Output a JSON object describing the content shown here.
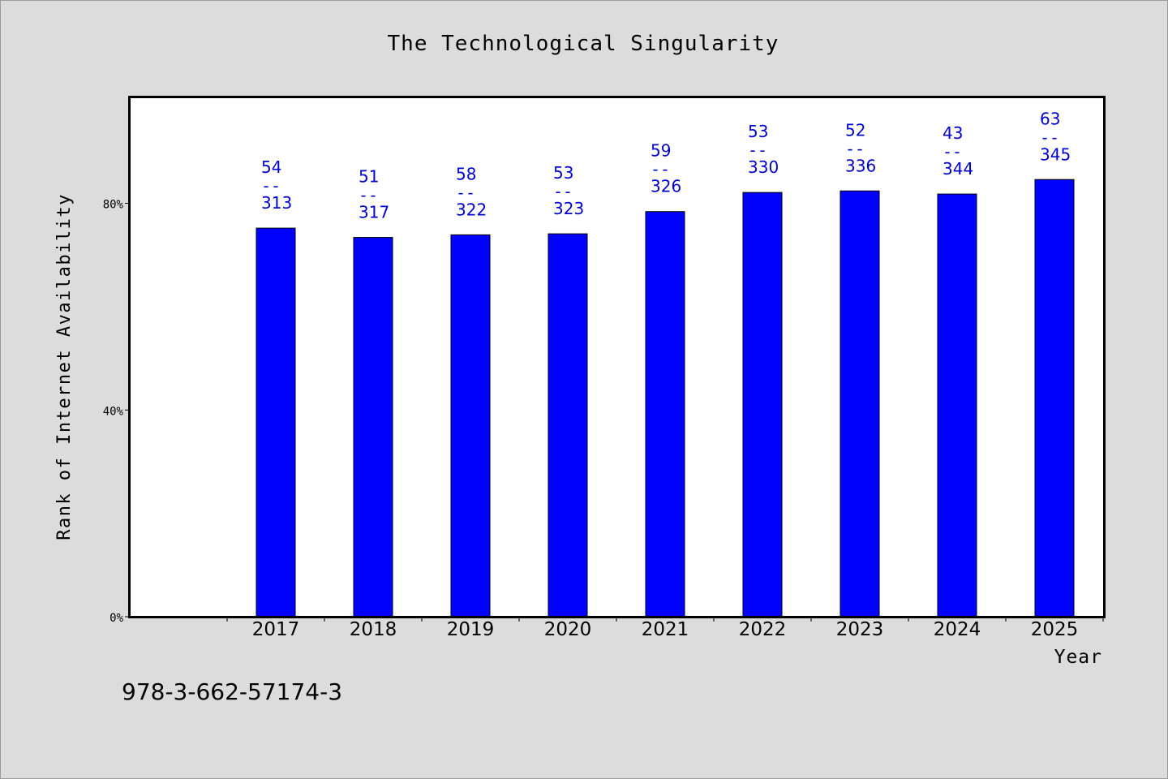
{
  "chart_data": {
    "type": "bar",
    "title": "The Technological Singularity",
    "xlabel": "Year",
    "ylabel": "Rank of Internet Availability",
    "y_tick_labels": [
      "0%",
      "40%",
      "80%"
    ],
    "y_tick_values": [
      0,
      40,
      80
    ],
    "ylim": [
      0,
      100.5
    ],
    "categories": [
      "2017",
      "2018",
      "2019",
      "2020",
      "2021",
      "2022",
      "2023",
      "2024",
      "2025"
    ],
    "values": [
      75.2,
      73.4,
      73.9,
      74.1,
      78.4,
      82.1,
      82.4,
      81.8,
      84.6
    ],
    "label_top": [
      "54",
      "51",
      "58",
      "53",
      "59",
      "53",
      "52",
      "43",
      "63"
    ],
    "label_separator": "--",
    "label_bottom": [
      "313",
      "317",
      "322",
      "323",
      "326",
      "330",
      "336",
      "344",
      "345"
    ],
    "grid": false,
    "legend": "none",
    "bar_color": "#0000ff",
    "label_color": "#0000cc"
  },
  "footer": {
    "isbn": "978-3-662-57174-3"
  }
}
